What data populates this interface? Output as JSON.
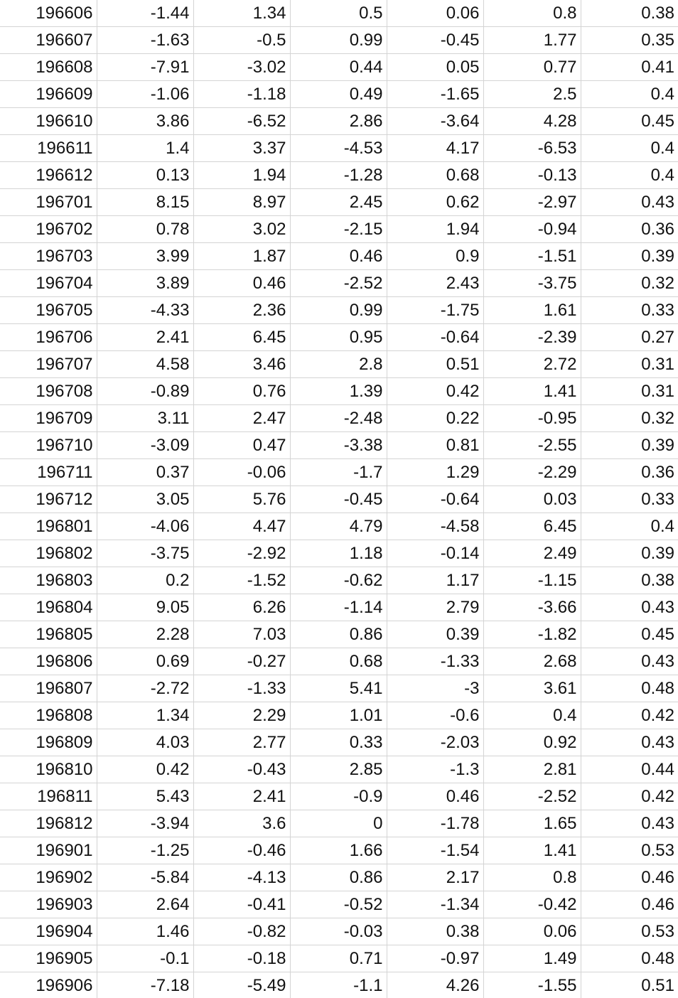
{
  "sheet": {
    "rows": [
      [
        "196606",
        "-1.44",
        "1.34",
        "0.5",
        "0.06",
        "0.8",
        "0.38"
      ],
      [
        "196607",
        "-1.63",
        "-0.5",
        "0.99",
        "-0.45",
        "1.77",
        "0.35"
      ],
      [
        "196608",
        "-7.91",
        "-3.02",
        "0.44",
        "0.05",
        "0.77",
        "0.41"
      ],
      [
        "196609",
        "-1.06",
        "-1.18",
        "0.49",
        "-1.65",
        "2.5",
        "0.4"
      ],
      [
        "196610",
        "3.86",
        "-6.52",
        "2.86",
        "-3.64",
        "4.28",
        "0.45"
      ],
      [
        "196611",
        "1.4",
        "3.37",
        "-4.53",
        "4.17",
        "-6.53",
        "0.4"
      ],
      [
        "196612",
        "0.13",
        "1.94",
        "-1.28",
        "0.68",
        "-0.13",
        "0.4"
      ],
      [
        "196701",
        "8.15",
        "8.97",
        "2.45",
        "0.62",
        "-2.97",
        "0.43"
      ],
      [
        "196702",
        "0.78",
        "3.02",
        "-2.15",
        "1.94",
        "-0.94",
        "0.36"
      ],
      [
        "196703",
        "3.99",
        "1.87",
        "0.46",
        "0.9",
        "-1.51",
        "0.39"
      ],
      [
        "196704",
        "3.89",
        "0.46",
        "-2.52",
        "2.43",
        "-3.75",
        "0.32"
      ],
      [
        "196705",
        "-4.33",
        "2.36",
        "0.99",
        "-1.75",
        "1.61",
        "0.33"
      ],
      [
        "196706",
        "2.41",
        "6.45",
        "0.95",
        "-0.64",
        "-2.39",
        "0.27"
      ],
      [
        "196707",
        "4.58",
        "3.46",
        "2.8",
        "0.51",
        "2.72",
        "0.31"
      ],
      [
        "196708",
        "-0.89",
        "0.76",
        "1.39",
        "0.42",
        "1.41",
        "0.31"
      ],
      [
        "196709",
        "3.11",
        "2.47",
        "-2.48",
        "0.22",
        "-0.95",
        "0.32"
      ],
      [
        "196710",
        "-3.09",
        "0.47",
        "-3.38",
        "0.81",
        "-2.55",
        "0.39"
      ],
      [
        "196711",
        "0.37",
        "-0.06",
        "-1.7",
        "1.29",
        "-2.29",
        "0.36"
      ],
      [
        "196712",
        "3.05",
        "5.76",
        "-0.45",
        "-0.64",
        "0.03",
        "0.33"
      ],
      [
        "196801",
        "-4.06",
        "4.47",
        "4.79",
        "-4.58",
        "6.45",
        "0.4"
      ],
      [
        "196802",
        "-3.75",
        "-2.92",
        "1.18",
        "-0.14",
        "2.49",
        "0.39"
      ],
      [
        "196803",
        "0.2",
        "-1.52",
        "-0.62",
        "1.17",
        "-1.15",
        "0.38"
      ],
      [
        "196804",
        "9.05",
        "6.26",
        "-1.14",
        "2.79",
        "-3.66",
        "0.43"
      ],
      [
        "196805",
        "2.28",
        "7.03",
        "0.86",
        "0.39",
        "-1.82",
        "0.45"
      ],
      [
        "196806",
        "0.69",
        "-0.27",
        "0.68",
        "-1.33",
        "2.68",
        "0.43"
      ],
      [
        "196807",
        "-2.72",
        "-1.33",
        "5.41",
        "-3",
        "3.61",
        "0.48"
      ],
      [
        "196808",
        "1.34",
        "2.29",
        "1.01",
        "-0.6",
        "0.4",
        "0.42"
      ],
      [
        "196809",
        "4.03",
        "2.77",
        "0.33",
        "-2.03",
        "0.92",
        "0.43"
      ],
      [
        "196810",
        "0.42",
        "-0.43",
        "2.85",
        "-1.3",
        "2.81",
        "0.44"
      ],
      [
        "196811",
        "5.43",
        "2.41",
        "-0.9",
        "0.46",
        "-2.52",
        "0.42"
      ],
      [
        "196812",
        "-3.94",
        "3.6",
        "0",
        "-1.78",
        "1.65",
        "0.43"
      ],
      [
        "196901",
        "-1.25",
        "-0.46",
        "1.66",
        "-1.54",
        "1.41",
        "0.53"
      ],
      [
        "196902",
        "-5.84",
        "-4.13",
        "0.86",
        "2.17",
        "0.8",
        "0.46"
      ],
      [
        "196903",
        "2.64",
        "-0.41",
        "-0.52",
        "-1.34",
        "-0.42",
        "0.46"
      ],
      [
        "196904",
        "1.46",
        "-0.82",
        "-0.03",
        "0.38",
        "0.06",
        "0.53"
      ],
      [
        "196905",
        "-0.1",
        "-0.18",
        "0.71",
        "-0.97",
        "1.49",
        "0.48"
      ],
      [
        "196906",
        "-7.18",
        "-5.49",
        "-1.1",
        "4.26",
        "-1.55",
        "0.51"
      ]
    ]
  }
}
